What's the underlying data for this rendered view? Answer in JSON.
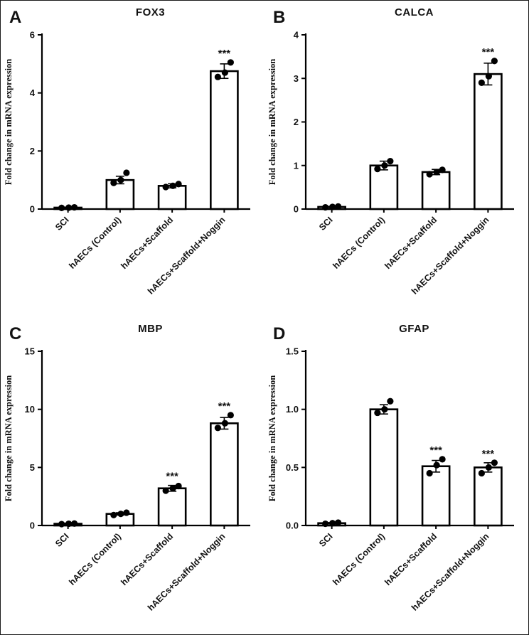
{
  "figure": {
    "background": "#ffffff",
    "axis_color": "#000000",
    "bar_fill": "#ffffff",
    "bar_stroke": "#000000",
    "dot_color": "#000000",
    "panels": [
      {
        "letter": "A",
        "title": "FOX3"
      },
      {
        "letter": "B",
        "title": "CALCA"
      },
      {
        "letter": "C",
        "title": "MBP"
      },
      {
        "letter": "D",
        "title": "GFAP"
      }
    ]
  },
  "chart_data": [
    {
      "type": "bar",
      "panel": "A",
      "title": "FOX3",
      "ylabel": "Fold change in mRNA expression",
      "categories": [
        "SCI",
        "hAECs (Control)",
        "hAECs+Scaffold",
        "hAECs+Scaffold+Noggin"
      ],
      "values": [
        0.05,
        1.0,
        0.8,
        4.75
      ],
      "errors": [
        0.01,
        0.13,
        0.07,
        0.25
      ],
      "points": [
        [
          0.04,
          0.05,
          0.06
        ],
        [
          0.9,
          1.0,
          1.25
        ],
        [
          0.76,
          0.8,
          0.86
        ],
        [
          4.55,
          4.7,
          5.05
        ]
      ],
      "significance": [
        "",
        "",
        "",
        "***"
      ],
      "ylim": [
        0,
        6
      ],
      "ytick_values": [
        0,
        2,
        4,
        6
      ],
      "ytick_labels": [
        "0",
        "2",
        "4",
        "6"
      ],
      "grid": false,
      "legend": "none"
    },
    {
      "type": "bar",
      "panel": "B",
      "title": "CALCA",
      "ylabel": "Fold change in mRNA expression",
      "categories": [
        "SCI",
        "hAECs (Control)",
        "hAECs+Scaffold",
        "hAECs+Scaffold+Noggin"
      ],
      "values": [
        0.05,
        1.0,
        0.85,
        3.1
      ],
      "errors": [
        0.01,
        0.1,
        0.06,
        0.25
      ],
      "points": [
        [
          0.04,
          0.05,
          0.06
        ],
        [
          0.92,
          1.0,
          1.1
        ],
        [
          0.8,
          0.85,
          0.9
        ],
        [
          2.9,
          3.05,
          3.4
        ]
      ],
      "significance": [
        "",
        "",
        "",
        "***"
      ],
      "ylim": [
        0,
        4
      ],
      "ytick_values": [
        0,
        1,
        2,
        3,
        4
      ],
      "ytick_labels": [
        "0",
        "1",
        "2",
        "3",
        "4"
      ],
      "grid": false,
      "legend": "none"
    },
    {
      "type": "bar",
      "panel": "C",
      "title": "MBP",
      "ylabel": "Fold change in mRNA expression",
      "categories": [
        "SCI",
        "hAECs (Control)",
        "hAECs+Scaffold",
        "hAECs+Scaffold+Noggin"
      ],
      "values": [
        0.15,
        1.0,
        3.2,
        8.8
      ],
      "errors": [
        0.05,
        0.1,
        0.25,
        0.5
      ],
      "points": [
        [
          0.12,
          0.15,
          0.17
        ],
        [
          0.9,
          1.0,
          1.1
        ],
        [
          3.0,
          3.2,
          3.4
        ],
        [
          8.4,
          8.8,
          9.5
        ]
      ],
      "significance": [
        "",
        "",
        "***",
        "***"
      ],
      "ylim": [
        0,
        15
      ],
      "ytick_values": [
        0,
        5,
        10,
        15
      ],
      "ytick_labels": [
        "0",
        "5",
        "10",
        "15"
      ],
      "grid": false,
      "legend": "none"
    },
    {
      "type": "bar",
      "panel": "D",
      "title": "GFAP",
      "ylabel": "Fold change in mRNA expression",
      "categories": [
        "SCI",
        "hAECs (Control)",
        "hAECs+Scaffold",
        "hAECs+Scaffold+Noggin"
      ],
      "values": [
        0.02,
        1.0,
        0.51,
        0.5
      ],
      "errors": [
        0.005,
        0.04,
        0.05,
        0.04
      ],
      "points": [
        [
          0.015,
          0.02,
          0.025
        ],
        [
          0.97,
          1.0,
          1.07
        ],
        [
          0.45,
          0.52,
          0.57
        ],
        [
          0.45,
          0.5,
          0.54
        ]
      ],
      "significance": [
        "",
        "",
        "***",
        "***"
      ],
      "ylim": [
        0,
        1.5
      ],
      "ytick_values": [
        0,
        0.5,
        1.0,
        1.5
      ],
      "ytick_labels": [
        "0.0",
        "0.5",
        "1.0",
        "1.5"
      ],
      "grid": false,
      "legend": "none"
    }
  ]
}
